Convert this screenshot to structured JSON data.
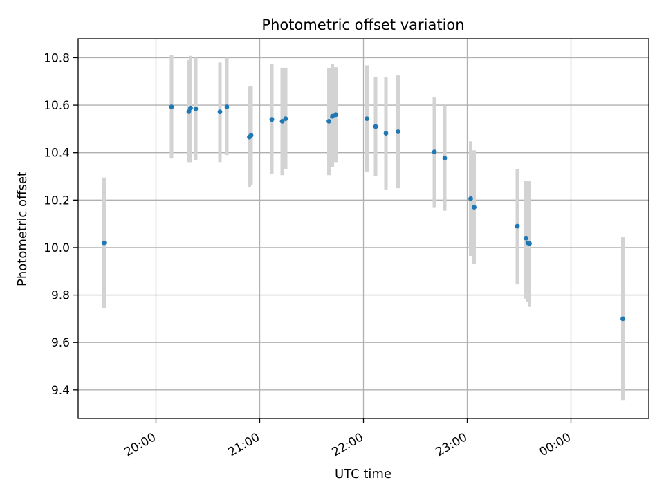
{
  "chart_data": {
    "type": "scatter",
    "title": "Photometric offset variation",
    "xlabel": "UTC time",
    "ylabel": "Photometric offset",
    "x_axis_type": "time",
    "x_tick_labels": [
      "20:00",
      "21:00",
      "22:00",
      "23:00",
      "00:00"
    ],
    "x_ticks": [
      "20:00",
      "21:00",
      "22:00",
      "23:00",
      "24:00"
    ],
    "xlim": [
      "19:15",
      "24:45"
    ],
    "ylim": [
      9.28,
      10.88
    ],
    "y_ticks": [
      9.4,
      9.6,
      9.8,
      10.0,
      10.2,
      10.4,
      10.6,
      10.8
    ],
    "y_tick_labels": [
      "9.4",
      "9.6",
      "9.8",
      "10.0",
      "10.2",
      "10.4",
      "10.6",
      "10.8"
    ],
    "grid": true,
    "marker_color": "#1f77b4",
    "errorbar_color": "#d3d3d3",
    "series": [
      {
        "points": [
          {
            "x": "19:30",
            "y": 10.02,
            "lo": 9.745,
            "hi": 10.295
          },
          {
            "x": "20:09",
            "y": 10.593,
            "lo": 10.375,
            "hi": 10.812
          },
          {
            "x": "20:19",
            "y": 10.573,
            "lo": 10.36,
            "hi": 10.79
          },
          {
            "x": "20:20",
            "y": 10.588,
            "lo": 10.36,
            "hi": 10.808
          },
          {
            "x": "20:23",
            "y": 10.585,
            "lo": 10.37,
            "hi": 10.8
          },
          {
            "x": "20:37",
            "y": 10.572,
            "lo": 10.36,
            "hi": 10.78
          },
          {
            "x": "20:41",
            "y": 10.593,
            "lo": 10.39,
            "hi": 10.8
          },
          {
            "x": "20:54",
            "y": 10.466,
            "lo": 10.255,
            "hi": 10.678
          },
          {
            "x": "20:55",
            "y": 10.473,
            "lo": 10.265,
            "hi": 10.68
          },
          {
            "x": "21:07",
            "y": 10.54,
            "lo": 10.31,
            "hi": 10.772
          },
          {
            "x": "21:13",
            "y": 10.532,
            "lo": 10.305,
            "hi": 10.758
          },
          {
            "x": "21:15",
            "y": 10.543,
            "lo": 10.33,
            "hi": 10.758
          },
          {
            "x": "21:40",
            "y": 10.532,
            "lo": 10.305,
            "hi": 10.755
          },
          {
            "x": "21:42",
            "y": 10.553,
            "lo": 10.34,
            "hi": 10.773
          },
          {
            "x": "21:44",
            "y": 10.56,
            "lo": 10.36,
            "hi": 10.76
          },
          {
            "x": "22:02",
            "y": 10.543,
            "lo": 10.32,
            "hi": 10.768
          },
          {
            "x": "22:07",
            "y": 10.51,
            "lo": 10.3,
            "hi": 10.72
          },
          {
            "x": "22:13",
            "y": 10.482,
            "lo": 10.245,
            "hi": 10.718
          },
          {
            "x": "22:20",
            "y": 10.488,
            "lo": 10.25,
            "hi": 10.725
          },
          {
            "x": "22:41",
            "y": 10.403,
            "lo": 10.17,
            "hi": 10.635
          },
          {
            "x": "22:47",
            "y": 10.377,
            "lo": 10.155,
            "hi": 10.6
          },
          {
            "x": "23:02",
            "y": 10.206,
            "lo": 9.965,
            "hi": 10.448
          },
          {
            "x": "23:04",
            "y": 10.17,
            "lo": 9.93,
            "hi": 10.41
          },
          {
            "x": "23:29",
            "y": 10.09,
            "lo": 9.845,
            "hi": 10.33
          },
          {
            "x": "23:34",
            "y": 10.04,
            "lo": 9.785,
            "hi": 10.282
          },
          {
            "x": "23:35",
            "y": 10.02,
            "lo": 9.77,
            "hi": 10.282
          },
          {
            "x": "23:36",
            "y": 10.017,
            "lo": 9.75,
            "hi": 10.282
          },
          {
            "x": "24:30",
            "y": 9.7,
            "lo": 9.355,
            "hi": 10.045
          }
        ]
      }
    ]
  }
}
